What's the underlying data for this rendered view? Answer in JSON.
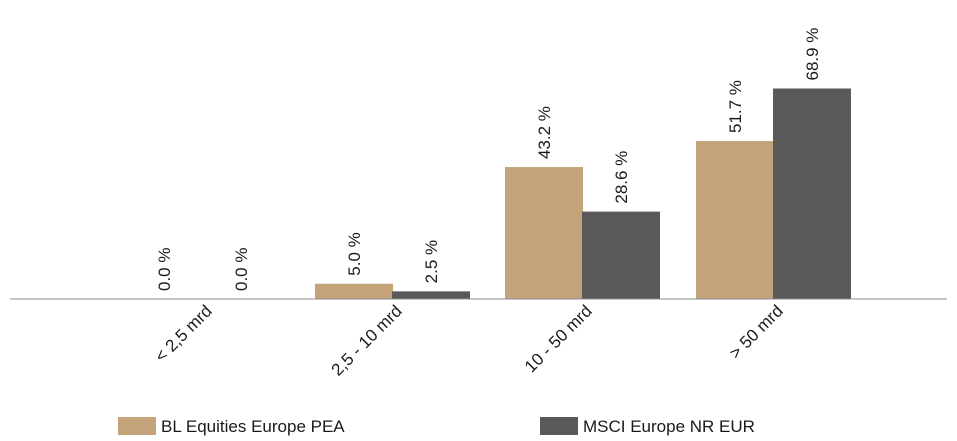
{
  "chart_data": {
    "type": "bar",
    "title": "",
    "xlabel": "",
    "ylabel": "",
    "categories": [
      "< 2,5 mrd",
      "2,5 - 10 mrd",
      "10 - 50 mrd",
      "> 50 mrd"
    ],
    "series": [
      {
        "name": "BL Equities Europe PEA",
        "values": [
          0.0,
          5.0,
          43.2,
          51.7
        ],
        "labels": [
          "0.0 %",
          "5.0 %",
          "43.2 %",
          "51.7 %"
        ],
        "color": "#C4A37B"
      },
      {
        "name": "MSCI Europe NR EUR",
        "values": [
          0.0,
          2.5,
          28.6,
          68.9
        ],
        "labels": [
          "0.0 %",
          "2.5 %",
          "28.6 %",
          "68.9 %"
        ],
        "color": "#595959"
      }
    ],
    "ylim": [
      0,
      75
    ],
    "grid": false,
    "legend_position": "bottom",
    "axis_color": "#8C8C8C"
  }
}
